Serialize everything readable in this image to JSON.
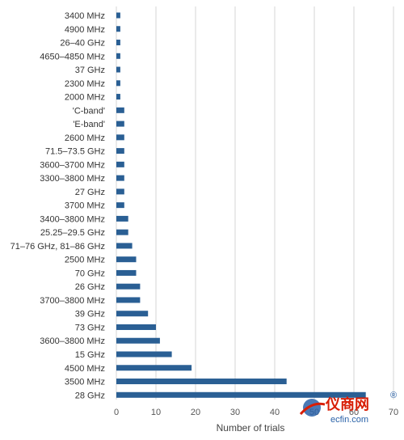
{
  "chart_data": {
    "type": "bar",
    "orientation": "horizontal",
    "categories": [
      "3400 MHz",
      "4900 MHz",
      "26–40 GHz",
      "4650–4850 MHz",
      "37 GHz",
      "2300 MHz",
      "2000 MHz",
      "'C-band'",
      "'E-band'",
      "2600 MHz",
      "71.5–73.5 GHz",
      "3600–3700 MHz",
      "3300–3800 MHz",
      "27 GHz",
      "3700 MHz",
      "3400–3800 MHz",
      "25.25–29.5 GHz",
      "71–76 GHz, 81–86 GHz",
      "2500 MHz",
      "70 GHz",
      "26 GHz",
      "3700–3800 MHz",
      "39 GHz",
      "73 GHz",
      "3600–3800 MHz",
      "15 GHz",
      "4500 MHz",
      "3500 MHz",
      "28 GHz"
    ],
    "values": [
      1,
      1,
      1,
      1,
      1,
      1,
      1,
      2,
      2,
      2,
      2,
      2,
      2,
      2,
      2,
      3,
      3,
      4,
      5,
      5,
      6,
      6,
      8,
      10,
      11,
      14,
      19,
      43,
      63
    ],
    "xlabel": "Number of trials",
    "xlim": [
      0,
      70
    ],
    "xticks": [
      "0",
      "10",
      "20",
      "30",
      "40",
      "50",
      "60",
      "70"
    ],
    "grid": "vertical",
    "bar_color": "#2a5f94",
    "grid_color": "#d4d4d4"
  },
  "watermark": {
    "brand": "仪商网",
    "registered": "®",
    "site": "ecfin.com",
    "color": "#d81e06"
  }
}
